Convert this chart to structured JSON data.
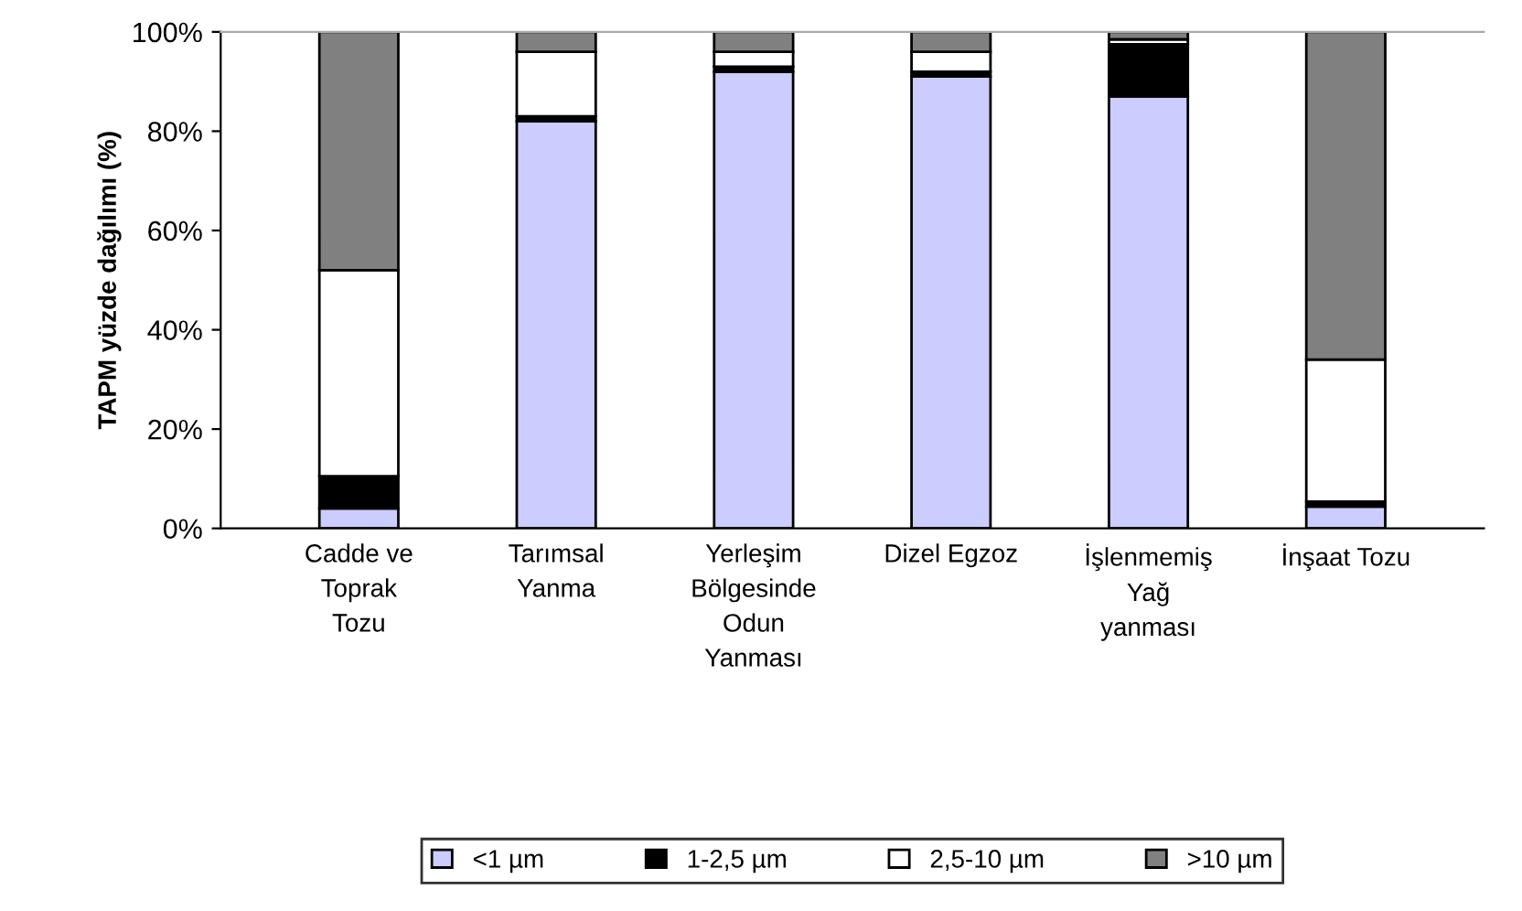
{
  "chart_data": {
    "type": "bar",
    "stacked": true,
    "ylabel": "TAPM yüzde dağılımı (%)",
    "categories": [
      "Cadde ve\nToprak\nTozu",
      "Tarımsal\nYanma",
      "Yerleşim\nBölgesinde\nOdun\nYanması",
      "Dizel Egzoz",
      "İşlenmemiş\nYağ\nyanması",
      "İnşaat Tozu"
    ],
    "series": [
      {
        "name": "<1 µm",
        "color": "#ccccff",
        "values": [
          4,
          82,
          92,
          91,
          87,
          4.4
        ]
      },
      {
        "name": "1-2,5 µm",
        "color": "#000000",
        "values": [
          6.5,
          1,
          1,
          1,
          10.5,
          1
        ]
      },
      {
        "name": "2,5-10 µm",
        "color": "#ffffff",
        "values": [
          41.5,
          13,
          3,
          4,
          1,
          28.6
        ]
      },
      {
        "name": ">10 µm",
        "color": "#808080",
        "values": [
          48,
          4,
          4,
          4,
          1.5,
          66
        ]
      }
    ],
    "ylim": [
      0,
      100
    ],
    "yticks": [
      {
        "value": 0,
        "label": "0%"
      },
      {
        "value": 20,
        "label": "20%"
      },
      {
        "value": 40,
        "label": "40%"
      },
      {
        "value": 60,
        "label": "60%"
      },
      {
        "value": 80,
        "label": "80%"
      },
      {
        "value": 100,
        "label": "100%"
      }
    ],
    "legend": "bottom"
  }
}
